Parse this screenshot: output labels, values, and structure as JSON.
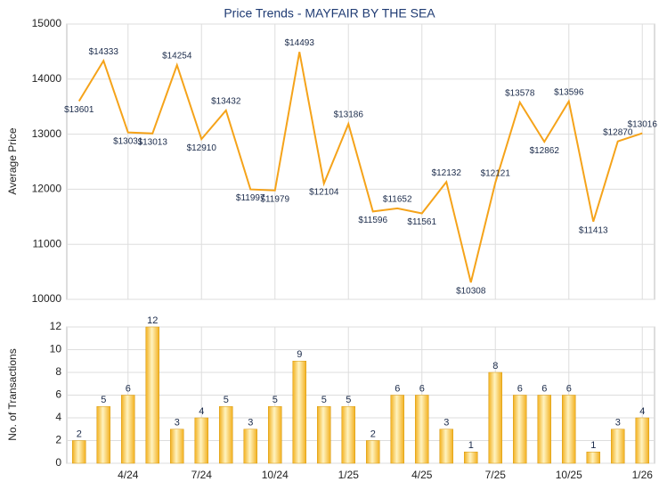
{
  "chart_data": [
    {
      "type": "line",
      "title": "Price Trends - MAYFAIR BY THE SEA",
      "y_label": "Average Price",
      "color": "#f5a31a",
      "values": [
        13601,
        14333,
        13031,
        13013,
        14254,
        12910,
        13432,
        11997,
        11979,
        14493,
        12104,
        13186,
        11596,
        11652,
        11561,
        12132,
        10308,
        12121,
        13578,
        12862,
        13596,
        11413,
        12870,
        13016
      ],
      "value_labels": [
        "$13601",
        "$14333",
        "$13031",
        "$13013",
        "$14254",
        "$12910",
        "$13432",
        "$11997",
        "$11979",
        "$14493",
        "$12104",
        "$13186",
        "$11596",
        "$11652",
        "$11561",
        "$12132",
        "$10308",
        "$12121",
        "$13578",
        "$12862",
        "$13596",
        "$11413",
        "$12870",
        "$13016"
      ],
      "ylim": [
        10000,
        15000
      ],
      "yticks": [
        10000,
        11000,
        12000,
        13000,
        14000,
        15000
      ],
      "grid": true
    },
    {
      "type": "bar",
      "y_label": "No. of Transactions",
      "color": "#f2b01e",
      "categories": [
        null,
        null,
        "4/24",
        null,
        null,
        "7/24",
        null,
        null,
        "10/24",
        null,
        null,
        "1/25",
        null,
        null,
        "4/25",
        null,
        null,
        "7/25",
        null,
        null,
        "10/25",
        null,
        null,
        "1/26"
      ],
      "values": [
        2,
        5,
        6,
        12,
        3,
        4,
        5,
        3,
        5,
        9,
        5,
        5,
        2,
        6,
        6,
        3,
        1,
        8,
        6,
        6,
        6,
        1,
        3,
        4
      ],
      "ylim": [
        0,
        12
      ],
      "yticks": [
        0,
        2,
        4,
        6,
        8,
        10,
        12
      ],
      "grid": true
    }
  ]
}
